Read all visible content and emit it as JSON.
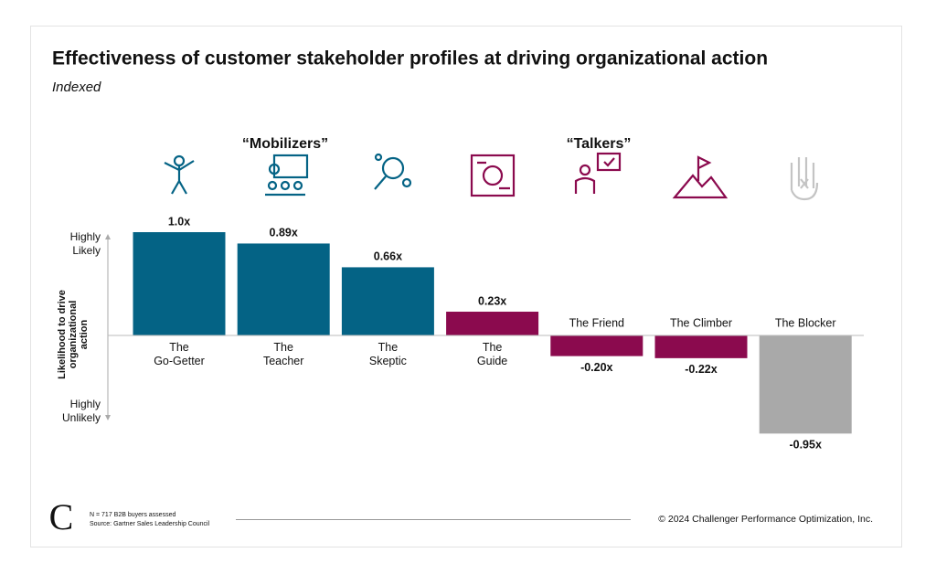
{
  "chart_data": {
    "type": "bar",
    "title": "Effectiveness of customer stakeholder profiles at driving organizational action",
    "subtitle": "Indexed",
    "y_label": "Likelihood to drive\norganizational\naction",
    "y_top_label": "Highly\nLikely",
    "y_bottom_label": "Highly\nUnlikely",
    "categories": [
      "The\nGo-Getter",
      "The\nTeacher",
      "The\nSkeptic",
      "The\nGuide",
      "The Friend",
      "The Climber",
      "The Blocker"
    ],
    "values": [
      1.0,
      0.89,
      0.66,
      0.23,
      -0.2,
      -0.22,
      -0.95
    ],
    "value_labels": [
      "1.0x",
      "0.89x",
      "0.66x",
      "0.23x",
      "-0.20x",
      "-0.22x",
      "-0.95x"
    ],
    "colors": [
      "#046385",
      "#046385",
      "#046385",
      "#8b0a4e",
      "#8b0a4e",
      "#8b0a4e",
      "#a9a9a9"
    ],
    "groups": [
      {
        "label": "“Mobilizers”",
        "color": "#046385"
      },
      {
        "label": "“Talkers”",
        "color": "#8b0a4e"
      }
    ],
    "ylim": [
      -1,
      1
    ],
    "footnotes": [
      "N = 717 B2B buyers assessed",
      "Source: Gartner Sales Leadership Council"
    ],
    "copyright": "© 2024 Challenger Performance Optimization, Inc."
  }
}
